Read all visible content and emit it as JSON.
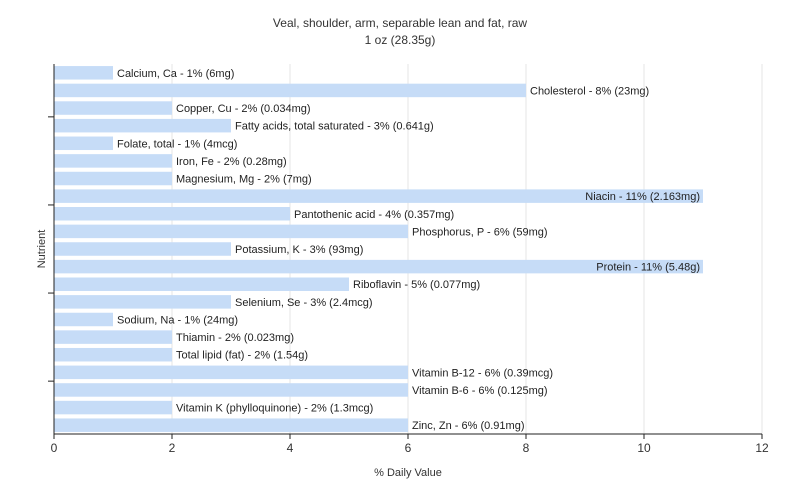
{
  "chart_data": {
    "type": "bar",
    "orientation": "horizontal",
    "title": "Veal, shoulder, arm, separable lean and fat, raw",
    "subtitle": "1 oz (28.35g)",
    "xlabel": "% Daily Value",
    "ylabel": "Nutrient",
    "xlim": [
      0,
      12
    ],
    "xticks": [
      "0",
      "2",
      "4",
      "6",
      "8",
      "10",
      "12"
    ],
    "grid": true,
    "colors": {
      "bar": "#c6dcf7",
      "grid": "#e4e4e4",
      "axis": "#222222"
    },
    "bars": [
      {
        "label": "Calcium, Ca - 1% (6mg)",
        "value": 1
      },
      {
        "label": "Cholesterol - 8% (23mg)",
        "value": 8
      },
      {
        "label": "Copper, Cu - 2% (0.034mg)",
        "value": 2
      },
      {
        "label": "Fatty acids, total saturated - 3% (0.641g)",
        "value": 3
      },
      {
        "label": "Folate, total - 1% (4mcg)",
        "value": 1
      },
      {
        "label": "Iron, Fe - 2% (0.28mg)",
        "value": 2
      },
      {
        "label": "Magnesium, Mg - 2% (7mg)",
        "value": 2
      },
      {
        "label": "Niacin - 11% (2.163mg)",
        "value": 11
      },
      {
        "label": "Pantothenic acid - 4% (0.357mg)",
        "value": 4
      },
      {
        "label": "Phosphorus, P - 6% (59mg)",
        "value": 6
      },
      {
        "label": "Potassium, K - 3% (93mg)",
        "value": 3
      },
      {
        "label": "Protein - 11% (5.48g)",
        "value": 11
      },
      {
        "label": "Riboflavin - 5% (0.077mg)",
        "value": 5
      },
      {
        "label": "Selenium, Se - 3% (2.4mcg)",
        "value": 3
      },
      {
        "label": "Sodium, Na - 1% (24mg)",
        "value": 1
      },
      {
        "label": "Thiamin - 2% (0.023mg)",
        "value": 2
      },
      {
        "label": "Total lipid (fat) - 2% (1.54g)",
        "value": 2
      },
      {
        "label": "Vitamin B-12 - 6% (0.39mcg)",
        "value": 6
      },
      {
        "label": "Vitamin B-6 - 6% (0.125mg)",
        "value": 6
      },
      {
        "label": "Vitamin K (phylloquinone) - 2% (1.3mcg)",
        "value": 2
      },
      {
        "label": "Zinc, Zn - 6% (0.91mg)",
        "value": 6
      }
    ]
  }
}
